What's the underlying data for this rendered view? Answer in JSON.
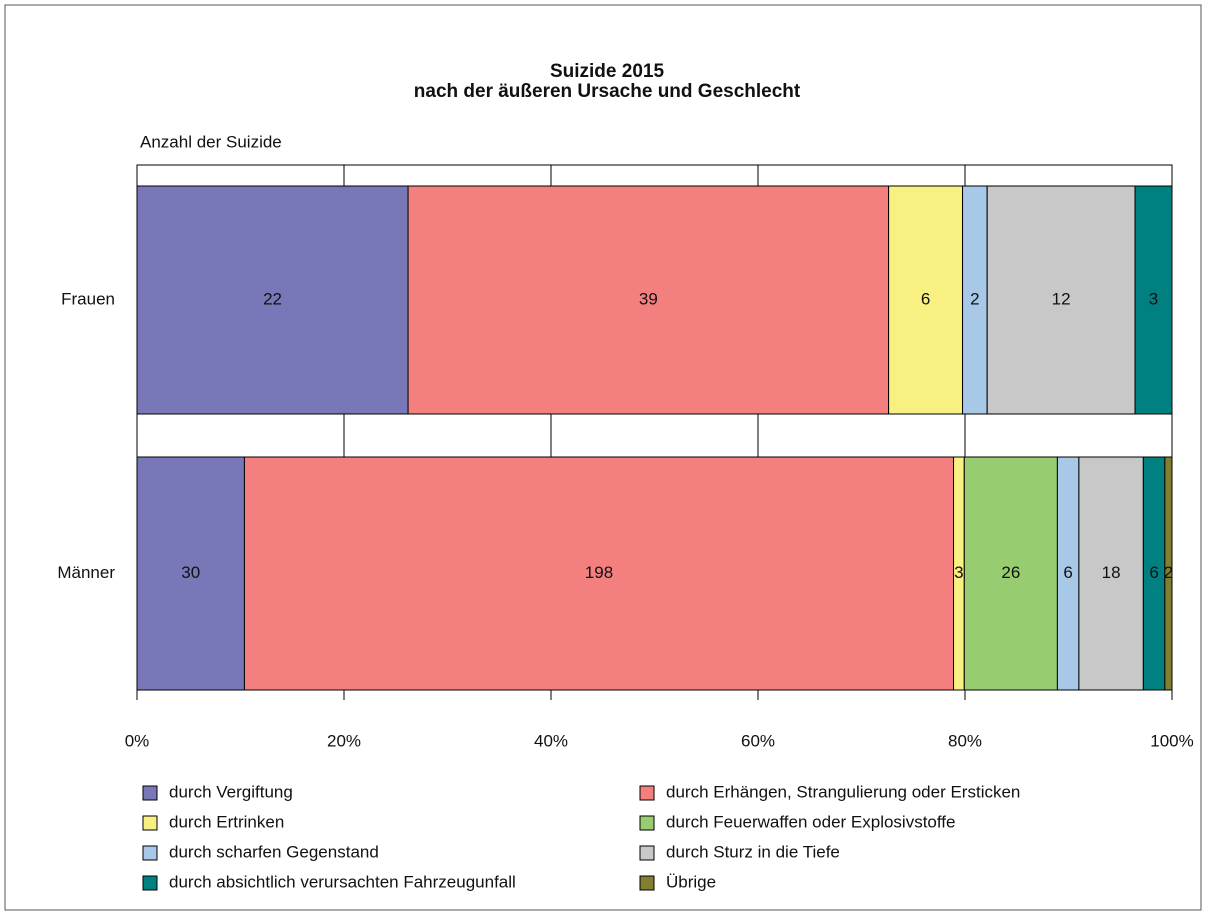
{
  "chart_data": {
    "type": "bar",
    "orientation": "horizontal",
    "stacked": "percent",
    "title": "Suizide 2015",
    "subtitle": "nach der äußeren Ursache und Geschlecht",
    "axis_label": "Anzahl der Suizide",
    "categories": [
      "Frauen",
      "Männer"
    ],
    "series": [
      {
        "name": "durch Vergiftung",
        "color": "#7878b8",
        "values": [
          22,
          30
        ]
      },
      {
        "name": "durch Erhängen, Strangulierung oder Ersticken",
        "color": "#f47f7f",
        "values": [
          39,
          198
        ]
      },
      {
        "name": "durch Ertrinken",
        "color": "#f8f080",
        "values": [
          6,
          3
        ]
      },
      {
        "name": "durch Feuerwaffen oder Explosivstoffe",
        "color": "#98cc70",
        "values": [
          null,
          26
        ]
      },
      {
        "name": "durch scharfen Gegenstand",
        "color": "#a8c8e8",
        "values": [
          2,
          6
        ]
      },
      {
        "name": "durch Sturz in die Tiefe",
        "color": "#c8c8c8",
        "values": [
          12,
          18
        ]
      },
      {
        "name": "durch absichtlich verursachten Fahrzeugunfall",
        "color": "#008080",
        "values": [
          3,
          6
        ]
      },
      {
        "name": "Übrige",
        "color": "#808030",
        "values": [
          null,
          2
        ]
      }
    ],
    "xlim": [
      0,
      100
    ],
    "xticks": [
      {
        "value": 0,
        "label": "0%"
      },
      {
        "value": 20,
        "label": "20%"
      },
      {
        "value": 40,
        "label": "40%"
      },
      {
        "value": 60,
        "label": "60%"
      },
      {
        "value": 80,
        "label": "80%"
      },
      {
        "value": 100,
        "label": "100%"
      }
    ],
    "grid": true
  }
}
